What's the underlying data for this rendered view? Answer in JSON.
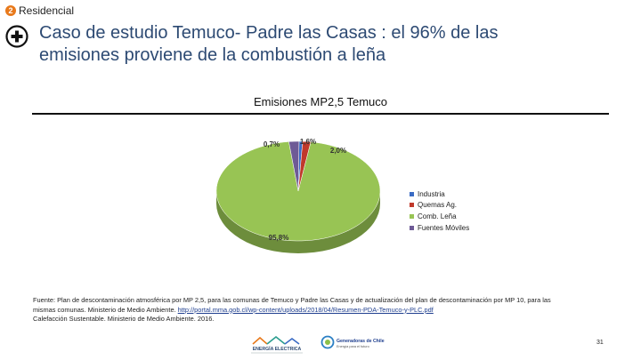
{
  "header": {
    "section_number": "2",
    "section_label": "Residencial",
    "title_line1": "Caso de estudio Temuco- Padre las Casas : el 96% de las",
    "title_line2": "emisiones proviene de la combustión a leña",
    "accent_color": "#2d4a73",
    "badge_color": "#e8791b"
  },
  "chart_data": {
    "type": "pie",
    "title": "Emisiones MP2,5 Temuco",
    "style": "3d-pie",
    "legend_position": "right",
    "slices": [
      {
        "name": "Industria",
        "value": 0.7,
        "label": "0,7%",
        "color": "#3a6bc4"
      },
      {
        "name": "Quemas Ag.",
        "value": 1.6,
        "label": "1,6%",
        "color": "#c0392b"
      },
      {
        "name": "Comb. Leña",
        "value": 95.8,
        "label": "95,8%",
        "color": "#98c454"
      },
      {
        "name": "Fuentes Móviles",
        "value": 2.0,
        "label": "2,0%",
        "color": "#6e5a96"
      }
    ]
  },
  "source": {
    "line1": "Fuente: Plan de descontaminación atmosférica por MP 2,5, para las comunas de Temuco y Padre las Casas y de actualización del plan de descontaminación por MP 10, para las",
    "line2_prefix": "mismas comunas. Ministerio de Medio Ambiente.",
    "link": "http://portal.mma.gob.cl/wp-content/uploads/2018/04/Resumen-PDA-Temuco-y-PLC.pdf",
    "line3": "Calefacción Sustentable. Ministerio de Medio Ambiente. 2016."
  },
  "footer": {
    "logo1_text": "ENERGÍA ELECTRICA",
    "logo2_text": "Generadoras de Chile",
    "logo2_sub": "Energía para el futuro",
    "page_number": "31"
  }
}
